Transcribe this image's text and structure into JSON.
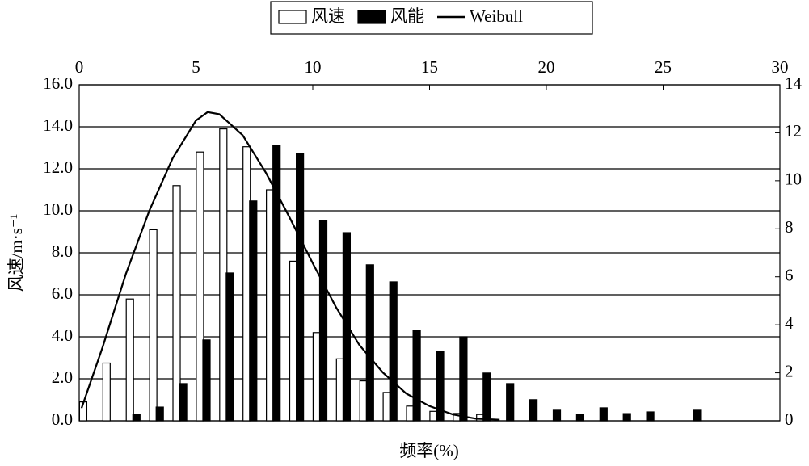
{
  "chart_data": {
    "type": "bar",
    "ylabel": "风速/m·s⁻¹",
    "xlabel": "频率(%)",
    "xlim": [
      0,
      30
    ],
    "xticks": [
      0,
      5,
      10,
      15,
      20,
      25,
      30
    ],
    "ylim": [
      0,
      16
    ],
    "yticks": [
      {
        "value": 0,
        "label": "0.0"
      },
      {
        "value": 2,
        "label": "2.0"
      },
      {
        "value": 4,
        "label": "4.0"
      },
      {
        "value": 6,
        "label": "6.0"
      },
      {
        "value": 8,
        "label": "8.0"
      },
      {
        "value": 10,
        "label": "10.0"
      },
      {
        "value": 12,
        "label": "12.0"
      },
      {
        "value": 14,
        "label": "14.0"
      },
      {
        "value": 16,
        "label": "16.0"
      }
    ],
    "y2lim": [
      0,
      14
    ],
    "y2ticks": [
      0,
      2,
      4,
      6,
      8,
      10,
      12,
      14
    ],
    "grid": true,
    "legend": "top",
    "x": [
      0,
      1,
      2,
      3,
      4,
      5,
      6,
      7,
      8,
      9,
      10,
      11,
      12,
      13,
      14,
      15,
      16,
      17,
      18,
      19,
      20,
      21,
      22,
      23,
      24,
      25,
      26
    ],
    "series": [
      {
        "name": "风速",
        "type": "bar",
        "color": "#ffffff",
        "values": [
          0.9,
          2.75,
          5.8,
          9.1,
          11.2,
          12.8,
          13.9,
          13.05,
          11.0,
          7.6,
          4.2,
          2.95,
          1.9,
          1.35,
          0.7,
          0.45,
          0.35,
          0.3,
          null,
          null,
          null,
          null,
          null,
          null,
          null,
          null,
          null
        ]
      },
      {
        "name": "风能",
        "type": "bar",
        "color": "#000000",
        "axis": "y2",
        "values": [
          null,
          null,
          0.25,
          0.57,
          1.55,
          3.37,
          6.16,
          9.16,
          11.48,
          11.14,
          8.35,
          7.84,
          6.5,
          5.79,
          3.77,
          2.9,
          3.5,
          1.99,
          1.55,
          0.88,
          0.44,
          0.27,
          0.54,
          0.3,
          0.37,
          null,
          0.44
        ]
      },
      {
        "name": "Weibull",
        "type": "line",
        "color": "#000000",
        "x": [
          0.1,
          1,
          2,
          3,
          4,
          5,
          5.5,
          6,
          7,
          8,
          9,
          10,
          11,
          12,
          13,
          14,
          15,
          16,
          17,
          18
        ],
        "values": [
          0.6,
          3.5,
          7.0,
          10.0,
          12.5,
          14.3,
          14.7,
          14.6,
          13.6,
          11.8,
          9.7,
          7.5,
          5.4,
          3.6,
          2.3,
          1.3,
          0.7,
          0.3,
          0.1,
          0.05
        ]
      }
    ]
  }
}
